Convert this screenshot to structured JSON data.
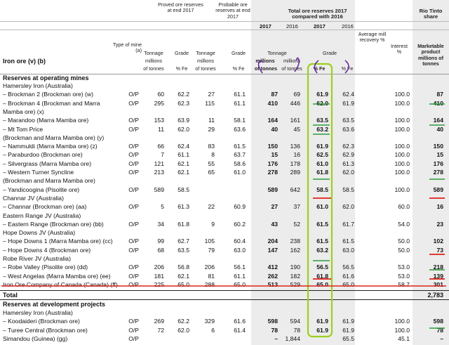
{
  "headers": {
    "proved": "Proved ore reserves at end 2017",
    "probable": "Probable ore reserves at end 2017",
    "total": "Total ore reserves 2017 compared with 2016",
    "rio": "Rio Tinto share",
    "y2017a": "2017",
    "y2016a": "2016",
    "y2017b": "2017",
    "y2016b": "2016",
    "type_of_mine": "Type of mine (a)",
    "tonnage": "Tonnage",
    "millions": "millions",
    "of_tonnes": "of tonnes",
    "grade": "Grade",
    "pct_fe": "% Fe",
    "tonnage2": "Tonnage",
    "millions2": "millions",
    "of_tonnes2": "of tonnes",
    "grade2": "Grade",
    "pct_fe2": "% Fe",
    "tot_tonnage": "Tonnage",
    "tot_millions_a": "millions",
    "tot_of_tonnes_a": "of tonnes",
    "tot_millions_b": "millions",
    "tot_of_tonnes_b": "of tonnes",
    "tot_grade": "Grade",
    "tot_fe_a": "% Fe",
    "tot_fe_b": "% Fe",
    "avg_mill": "Average mill recovery %",
    "interest": "Interest %",
    "marketable": "Marketable product millions of tonnes",
    "section_title": "Iron ore (v) (b)"
  },
  "sections": {
    "operating": "Reserves at operating mines",
    "development": "Reserves at development projects",
    "total_label": "Total",
    "total_value": "2,783"
  },
  "rows": [
    {
      "name": "Hamersley Iron (Australia)"
    },
    {
      "name": "– Brockman 2 (Brockman ore) (w)",
      "type": "O/P",
      "pt": "60",
      "pg": "62.2",
      "bt": "27",
      "bg": "61.1",
      "t17": "87",
      "t16": "69",
      "g17": "61.9",
      "g16": "62.4",
      "mill": "",
      "int": "100.0",
      "mp": "87"
    },
    {
      "name": "– Brockman 4 (Brockman and Marra",
      "type": "O/P",
      "pt": "295",
      "pg": "62.3",
      "bt": "115",
      "bg": "61.1",
      "t17": "410",
      "t16": "446",
      "g17": "62.0",
      "g16": "61.9",
      "mill": "",
      "int": "100.0",
      "mp": "410"
    },
    {
      "name": "Mamba ore) (x)"
    },
    {
      "name": "– Marandoo (Marra Mamba ore)",
      "type": "O/P",
      "pt": "153",
      "pg": "63.9",
      "bt": "11",
      "bg": "58.1",
      "t17": "164",
      "t16": "161",
      "g17": "63.5",
      "g16": "63.5",
      "mill": "",
      "int": "100.0",
      "mp": "164"
    },
    {
      "name": "– Mt Tom Price",
      "type": "O/P",
      "pt": "11",
      "pg": "62.0",
      "bt": "29",
      "bg": "63.6",
      "t17": "40",
      "t16": "45",
      "g17": "63.2",
      "g16": "63.6",
      "mill": "",
      "int": "100.0",
      "mp": "40"
    },
    {
      "name": "(Brockman and Marra Mamba ore) (y)"
    },
    {
      "name": "– Nammuldi (Marra Mamba ore) (z)",
      "type": "O/P",
      "pt": "66",
      "pg": "62.4",
      "bt": "83",
      "bg": "61.5",
      "t17": "150",
      "t16": "136",
      "g17": "61.9",
      "g16": "62.3",
      "mill": "",
      "int": "100.0",
      "mp": "150"
    },
    {
      "name": "– Paraburdoo (Brockman ore)",
      "type": "O/P",
      "pt": "7",
      "pg": "61.1",
      "bt": "8",
      "bg": "63.7",
      "t17": "15",
      "t16": "16",
      "g17": "62.5",
      "g16": "62.9",
      "mill": "",
      "int": "100.0",
      "mp": "15"
    },
    {
      "name": "– Silvergrass (Marra Mamba ore)",
      "type": "O/P",
      "pt": "121",
      "pg": "62.1",
      "bt": "55",
      "bg": "58.6",
      "t17": "176",
      "t16": "178",
      "g17": "61.0",
      "g16": "61.3",
      "mill": "",
      "int": "100.0",
      "mp": "176"
    },
    {
      "name": "– Western Turner Syncline",
      "type": "O/P",
      "pt": "213",
      "pg": "62.1",
      "bt": "65",
      "bg": "61.0",
      "t17": "278",
      "t16": "289",
      "g17": "61.8",
      "g16": "62.0",
      "mill": "",
      "int": "100.0",
      "mp": "278"
    },
    {
      "name": "(Brockman and Marra Mamba ore)"
    },
    {
      "name": "– Yandicoogina (Pisolite ore)",
      "type": "O/P",
      "pt": "589",
      "pg": "58.5",
      "bt": "",
      "bg": "",
      "t17": "589",
      "t16": "642",
      "g17": "58.5",
      "g16": "58.5",
      "mill": "",
      "int": "100.0",
      "mp": "589"
    },
    {
      "name": "Channar JV (Australia)"
    },
    {
      "name": "– Channar (Brockman ore) (aa)",
      "type": "O/P",
      "pt": "5",
      "pg": "61.3",
      "bt": "22",
      "bg": "60.9",
      "t17": "27",
      "t16": "37",
      "g17": "61.0",
      "g16": "62.0",
      "mill": "",
      "int": "60.0",
      "mp": "16"
    },
    {
      "name": "Eastern Range JV (Australia)"
    },
    {
      "name": "– Eastern Range (Brockman ore) (bb)",
      "type": "O/P",
      "pt": "34",
      "pg": "61.8",
      "bt": "9",
      "bg": "60.2",
      "t17": "43",
      "t16": "52",
      "g17": "61.5",
      "g16": "61.7",
      "mill": "",
      "int": "54.0",
      "mp": "23"
    },
    {
      "name": "Hope Downs JV (Australia)"
    },
    {
      "name": "– Hope Downs 1 (Marra Mamba ore) (cc)",
      "type": "O/P",
      "pt": "99",
      "pg": "62.7",
      "bt": "105",
      "bg": "60.4",
      "t17": "204",
      "t16": "238",
      "g17": "61.5",
      "g16": "61.5",
      "mill": "",
      "int": "50.0",
      "mp": "102"
    },
    {
      "name": "– Hope Downs 4 (Brockman ore)",
      "type": "O/P",
      "pt": "68",
      "pg": "63.5",
      "bt": "79",
      "bg": "63.0",
      "t17": "147",
      "t16": "162",
      "g17": "63.2",
      "g16": "63.0",
      "mill": "",
      "int": "50.0",
      "mp": "73"
    },
    {
      "name": "Robe River JV (Australia)"
    },
    {
      "name": "– Robe Valley (Pisolite ore) (dd)",
      "type": "O/P",
      "pt": "206",
      "pg": "56.8",
      "bt": "206",
      "bg": "56.1",
      "t17": "412",
      "t16": "190",
      "g17": "56.5",
      "g16": "56.5",
      "mill": "",
      "int": "53.0",
      "mp": "218"
    },
    {
      "name": "– West Angelas (Marra Mamba ore) (ee)",
      "type": "O/P",
      "pt": "181",
      "pg": "62.1",
      "bt": "81",
      "bg": "61.1",
      "t17": "262",
      "t16": "182",
      "g17": "61.8",
      "g16": "61.6",
      "mill": "",
      "int": "53.0",
      "mp": "139"
    },
    {
      "name": "Iron Ore Company of Canada (Canada) (ff)",
      "type": "O/P",
      "pt": "225",
      "pg": "65.0",
      "bt": "288",
      "bg": "65.0",
      "t17": "513",
      "t16": "529",
      "g17": "65.0",
      "g16": "65.0",
      "mill": "",
      "int": "58.7",
      "mp": "301"
    }
  ],
  "dev_rows": [
    {
      "name": "Hamersley Iron (Australia)"
    },
    {
      "name": "– Koodaideri (Brockman ore)",
      "type": "O/P",
      "pt": "269",
      "pg": "62.2",
      "bt": "329",
      "bg": "61.6",
      "t17": "598",
      "t16": "594",
      "g17": "61.9",
      "g16": "61.9",
      "mill": "",
      "int": "100.0",
      "mp": "598"
    },
    {
      "name": "– Turee Central (Brockman ore)",
      "type": "O/P",
      "pt": "72",
      "pg": "62.0",
      "bt": "6",
      "bg": "61.4",
      "t17": "78",
      "t16": "78",
      "g17": "61.9",
      "g16": "61.9",
      "mill": "",
      "int": "100.0",
      "mp": "78"
    },
    {
      "name": "Simandou (Guinea) (gg)",
      "type": "O/P",
      "pt": "",
      "pg": "",
      "bt": "",
      "bg": "",
      "t17": "–",
      "t16": "1,844",
      "g17": "",
      "g16": "65.5",
      "mill": "",
      "int": "45.1",
      "mp": "–"
    }
  ],
  "colors": {
    "highlight_green": "#9bd11e",
    "mark_red": "#e0201a",
    "mark_purple": "#6a2a9c",
    "mark_green": "#2a9d3a"
  }
}
